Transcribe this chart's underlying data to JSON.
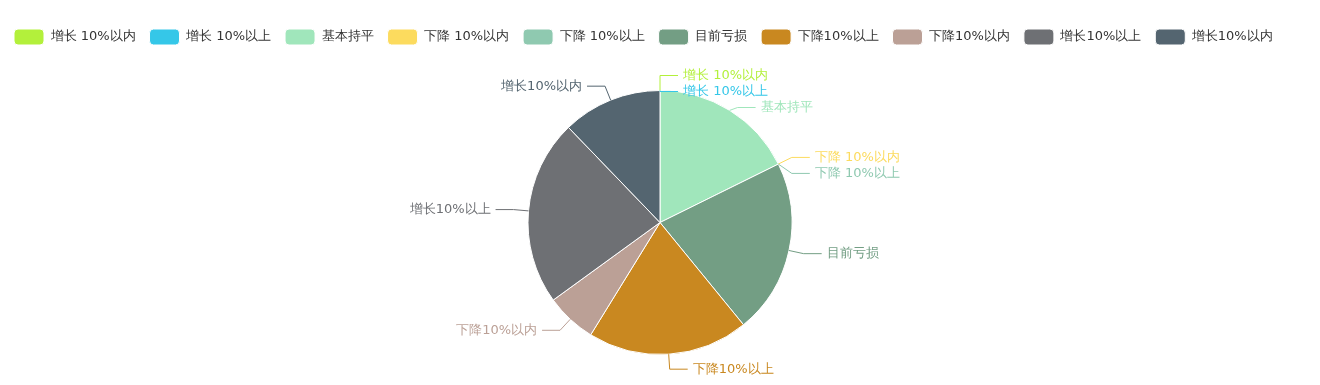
{
  "chart_data": {
    "type": "pie",
    "categories": [
      "增长 10%以内",
      "增长 10%以上",
      "基本持平",
      "下降 10%以内",
      "下降 10%以上",
      "目前亏损",
      "下降10%以上",
      "下降10%以内",
      "增长10%以上",
      "增长10%以内"
    ],
    "values": [
      0,
      0,
      17.7,
      0,
      0,
      21.4,
      19.7,
      6.2,
      22.8,
      12.2
    ],
    "colors": [
      "#b3f03b",
      "#35c7e8",
      "#a0e6bb",
      "#fcdb5e",
      "#8fc9b0",
      "#739e84",
      "#c98820",
      "#bba096",
      "#6e7074",
      "#546570"
    ],
    "legend": "top left"
  }
}
